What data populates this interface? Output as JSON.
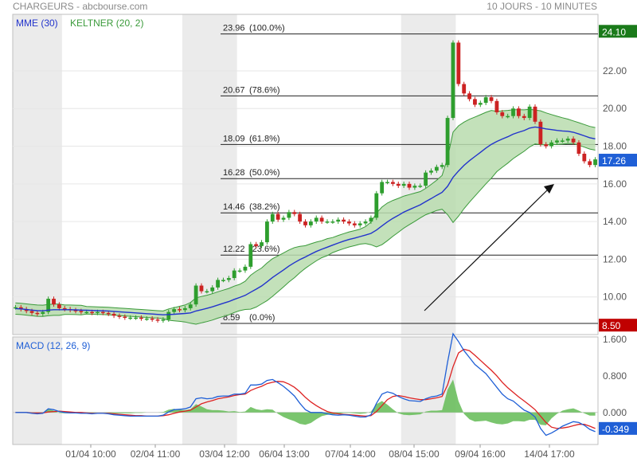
{
  "header": {
    "title": "CHARGEURS - abcbourse.com",
    "timeframe": "10 JOURS - 10 MINUTES"
  },
  "colors": {
    "mme": "#2233cc",
    "keltner_line": "#3a9a3a",
    "keltner_fill": "#b8dcae",
    "candle_up": "#2e9e2e",
    "candle_down": "#cc2222",
    "macd_line": "#1f5fd6",
    "signal_line": "#dd2222",
    "histogram": "#6cbf5e",
    "last_price_tag": "#1a7a1a",
    "low_tag": "#c00000",
    "macd_tag": "#1f5fd6",
    "session_band": "#ebebeb"
  },
  "chart_data": [
    {
      "type": "line",
      "name": "price",
      "legend": [
        "MME (30)",
        "KELTNER (20, 2)"
      ],
      "ylim": [
        8.0,
        25.0
      ],
      "y_ticks": [
        "10.00",
        "12.00",
        "14.00",
        "16.00",
        "18.00",
        "20.00",
        "22.00"
      ],
      "x_ticks": [
        "01/04 10:00",
        "02/04 11:00",
        "03/04 12:00",
        "06/04 13:00",
        "07/04 14:00",
        "08/04 15:00",
        "09/04 16:00",
        "14/04 17:00"
      ],
      "tag_last": "17.26",
      "tag_high": "24.10",
      "tag_low": "8.50",
      "fibonacci": [
        {
          "value": 23.96,
          "label": "23.96",
          "pct": "(100.0%)"
        },
        {
          "value": 20.67,
          "label": "20.67",
          "pct": "(78.6%)"
        },
        {
          "value": 18.09,
          "label": "18.09",
          "pct": "(61.8%)"
        },
        {
          "value": 16.28,
          "label": "16.28",
          "pct": "(50.0%)"
        },
        {
          "value": 14.46,
          "label": "14.46",
          "pct": "(38.2%)"
        },
        {
          "value": 12.22,
          "label": "12.22",
          "pct": "(23.6%)"
        },
        {
          "value": 8.59,
          "label": "8.59",
          "pct": "(0.0%)"
        }
      ],
      "close": [
        9.45,
        9.35,
        9.25,
        9.15,
        9.1,
        9.2,
        9.9,
        9.6,
        9.4,
        9.35,
        9.3,
        9.25,
        9.2,
        9.2,
        9.15,
        9.2,
        9.15,
        9.1,
        9.0,
        8.95,
        8.9,
        8.9,
        8.9,
        8.85,
        8.85,
        8.8,
        8.75,
        8.8,
        9.2,
        9.35,
        9.3,
        9.4,
        9.6,
        10.6,
        10.3,
        10.3,
        10.5,
        10.9,
        10.9,
        11.0,
        11.4,
        11.4,
        11.6,
        12.8,
        12.7,
        12.9,
        14.0,
        14.4,
        14.1,
        14.2,
        14.5,
        14.4,
        14.0,
        13.8,
        14.0,
        14.2,
        14.0,
        14.0,
        14.0,
        14.1,
        14.0,
        13.9,
        13.8,
        13.9,
        14.0,
        14.2,
        15.5,
        16.1,
        16.1,
        16.0,
        15.9,
        16.0,
        15.8,
        15.9,
        15.9,
        16.6,
        16.7,
        16.9,
        17.0,
        19.5,
        23.5,
        21.3,
        20.8,
        20.5,
        20.2,
        20.3,
        20.6,
        20.4,
        19.8,
        19.6,
        19.6,
        20.0,
        19.6,
        19.5,
        20.1,
        19.3,
        18.1,
        18.0,
        18.2,
        18.3,
        18.3,
        18.4,
        18.2,
        17.6,
        17.2,
        17.0,
        17.3
      ],
      "mme": [
        9.38,
        9.36,
        9.33,
        9.3,
        9.27,
        9.26,
        9.3,
        9.32,
        9.32,
        9.32,
        9.32,
        9.31,
        9.3,
        9.29,
        9.28,
        9.27,
        9.26,
        9.25,
        9.23,
        9.21,
        9.19,
        9.17,
        9.15,
        9.13,
        9.11,
        9.09,
        9.07,
        9.05,
        9.06,
        9.08,
        9.1,
        9.12,
        9.15,
        9.25,
        9.32,
        9.39,
        9.47,
        9.57,
        9.66,
        9.75,
        9.87,
        9.97,
        10.08,
        10.25,
        10.41,
        10.58,
        10.8,
        11.03,
        11.23,
        11.43,
        11.64,
        11.82,
        11.98,
        12.12,
        12.27,
        12.41,
        12.53,
        12.64,
        12.75,
        12.86,
        12.96,
        13.05,
        13.12,
        13.2,
        13.28,
        13.37,
        13.55,
        13.77,
        13.98,
        14.17,
        14.33,
        14.5,
        14.63,
        14.76,
        14.89,
        15.06,
        15.22,
        15.39,
        15.55,
        15.87,
        16.35,
        16.68,
        16.98,
        17.23,
        17.45,
        17.67,
        17.9,
        18.1,
        18.25,
        18.38,
        18.5,
        18.64,
        18.74,
        18.83,
        18.96,
        19.02,
        18.98,
        18.92,
        18.88,
        18.84,
        18.81,
        18.79,
        18.74,
        18.65,
        18.55,
        18.45,
        18.39
      ],
      "kelt_hw": [
        0.3,
        0.3,
        0.3,
        0.3,
        0.3,
        0.3,
        0.3,
        0.3,
        0.3,
        0.25,
        0.25,
        0.25,
        0.25,
        0.2,
        0.2,
        0.2,
        0.2,
        0.2,
        0.2,
        0.2,
        0.2,
        0.2,
        0.2,
        0.2,
        0.2,
        0.2,
        0.2,
        0.2,
        0.3,
        0.35,
        0.4,
        0.45,
        0.55,
        0.7,
        0.7,
        0.7,
        0.7,
        0.7,
        0.7,
        0.7,
        0.7,
        0.7,
        0.75,
        0.9,
        0.95,
        0.95,
        1.0,
        1.0,
        0.95,
        0.9,
        0.85,
        0.8,
        0.7,
        0.6,
        0.55,
        0.5,
        0.45,
        0.45,
        0.4,
        0.4,
        0.4,
        0.4,
        0.4,
        0.4,
        0.45,
        0.6,
        0.9,
        1.0,
        1.0,
        0.95,
        0.9,
        0.85,
        0.8,
        0.75,
        0.7,
        0.7,
        0.75,
        0.8,
        0.9,
        1.5,
        2.4,
        2.4,
        2.3,
        2.2,
        2.1,
        2.0,
        1.9,
        1.8,
        1.6,
        1.5,
        1.4,
        1.3,
        1.2,
        1.1,
        1.0,
        0.9,
        0.9,
        0.85,
        0.8,
        0.75,
        0.7,
        0.65,
        0.6,
        0.6,
        0.6,
        0.6,
        0.6
      ],
      "sessions": [
        [
          0,
          8
        ],
        [
          31,
          40
        ],
        [
          71,
          80
        ]
      ]
    },
    {
      "type": "line",
      "name": "macd",
      "legend": [
        "MACD (12, 26, 9)"
      ],
      "ylim": [
        -0.7,
        1.65
      ],
      "y_ticks": [
        "0.000",
        "0.800",
        "1.600"
      ],
      "tag": "-0.349",
      "macd": [
        0.0,
        0.0,
        0.0,
        -0.02,
        -0.03,
        -0.02,
        0.08,
        0.06,
        0.02,
        0.0,
        -0.01,
        -0.01,
        -0.02,
        -0.02,
        -0.03,
        -0.02,
        -0.02,
        -0.03,
        -0.05,
        -0.06,
        -0.07,
        -0.08,
        -0.08,
        -0.08,
        -0.08,
        -0.08,
        -0.08,
        -0.06,
        0.01,
        0.06,
        0.07,
        0.08,
        0.12,
        0.3,
        0.32,
        0.3,
        0.31,
        0.35,
        0.36,
        0.36,
        0.4,
        0.4,
        0.42,
        0.6,
        0.6,
        0.62,
        0.7,
        0.72,
        0.65,
        0.57,
        0.47,
        0.36,
        0.2,
        0.06,
        0.0,
        0.0,
        0.0,
        -0.03,
        -0.05,
        -0.06,
        -0.05,
        -0.06,
        -0.08,
        -0.1,
        -0.1,
        -0.05,
        0.2,
        0.4,
        0.45,
        0.42,
        0.35,
        0.3,
        0.26,
        0.25,
        0.24,
        0.3,
        0.34,
        0.36,
        0.4,
        1.1,
        1.72,
        1.55,
        1.35,
        1.2,
        1.05,
        0.95,
        0.85,
        0.7,
        0.55,
        0.4,
        0.3,
        0.25,
        0.15,
        0.05,
        0.0,
        -0.1,
        -0.35,
        -0.5,
        -0.45,
        -0.38,
        -0.3,
        -0.25,
        -0.2,
        -0.22,
        -0.28,
        -0.37,
        -0.42
      ],
      "signal": [
        0.0,
        0.0,
        0.0,
        -0.01,
        -0.01,
        -0.01,
        0.01,
        0.02,
        0.03,
        0.02,
        0.01,
        0.0,
        0.0,
        -0.01,
        -0.02,
        -0.02,
        -0.02,
        -0.02,
        -0.03,
        -0.04,
        -0.05,
        -0.06,
        -0.07,
        -0.07,
        -0.08,
        -0.08,
        -0.08,
        -0.07,
        -0.05,
        -0.02,
        0.01,
        0.03,
        0.05,
        0.12,
        0.19,
        0.23,
        0.26,
        0.3,
        0.32,
        0.34,
        0.37,
        0.39,
        0.4,
        0.48,
        0.53,
        0.57,
        0.63,
        0.66,
        0.68,
        0.67,
        0.62,
        0.55,
        0.45,
        0.33,
        0.23,
        0.15,
        0.08,
        0.02,
        -0.01,
        -0.03,
        -0.04,
        -0.05,
        -0.06,
        -0.07,
        -0.08,
        -0.07,
        0.02,
        0.15,
        0.28,
        0.35,
        0.37,
        0.35,
        0.32,
        0.3,
        0.28,
        0.28,
        0.3,
        0.32,
        0.35,
        0.6,
        1.0,
        1.3,
        1.38,
        1.35,
        1.25,
        1.14,
        1.03,
        0.92,
        0.8,
        0.66,
        0.54,
        0.44,
        0.34,
        0.25,
        0.16,
        0.06,
        -0.08,
        -0.22,
        -0.32,
        -0.35,
        -0.34,
        -0.32,
        -0.29,
        -0.26,
        -0.26,
        -0.3,
        -0.35
      ]
    }
  ]
}
